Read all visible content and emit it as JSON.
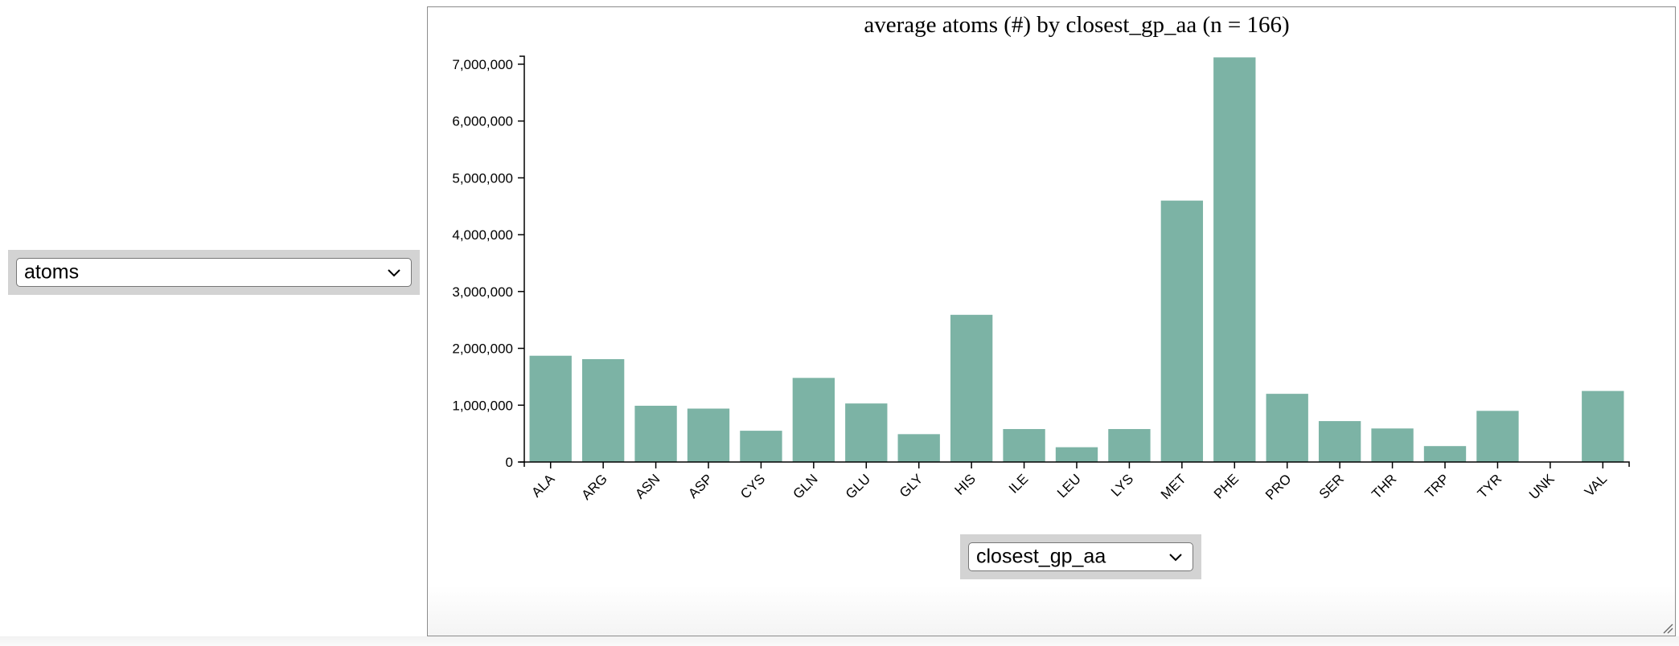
{
  "left_select": {
    "value": "atoms"
  },
  "bottom_select": {
    "value": "closest_gp_aa"
  },
  "colors": {
    "bar": "#7cb3a5",
    "axis": "#000000"
  },
  "icons": {
    "dropdown": "chevron-down-icon",
    "resize": "resize-handle-icon"
  },
  "chart_data": {
    "type": "bar",
    "title": "average atoms (#) by closest_gp_aa (n = 166)",
    "xlabel": "",
    "ylabel": "",
    "categories": [
      "ALA",
      "ARG",
      "ASN",
      "ASP",
      "CYS",
      "GLN",
      "GLU",
      "GLY",
      "HIS",
      "ILE",
      "LEU",
      "LYS",
      "MET",
      "PHE",
      "PRO",
      "SER",
      "THR",
      "TRP",
      "TYR",
      "UNK",
      "VAL"
    ],
    "values": [
      1870000,
      1810000,
      990000,
      940000,
      550000,
      1480000,
      1030000,
      490000,
      2590000,
      580000,
      260000,
      580000,
      4600000,
      7120000,
      1200000,
      720000,
      590000,
      280000,
      900000,
      0,
      1250000
    ],
    "yticks": [
      0,
      1000000,
      2000000,
      3000000,
      4000000,
      5000000,
      6000000,
      7000000
    ],
    "ytick_labels": [
      "0",
      "1,000,000",
      "2,000,000",
      "3,000,000",
      "4,000,000",
      "5,000,000",
      "6,000,000",
      "7,000,000"
    ],
    "ylim": [
      0,
      7140000
    ],
    "grid": false,
    "legend": "none"
  }
}
